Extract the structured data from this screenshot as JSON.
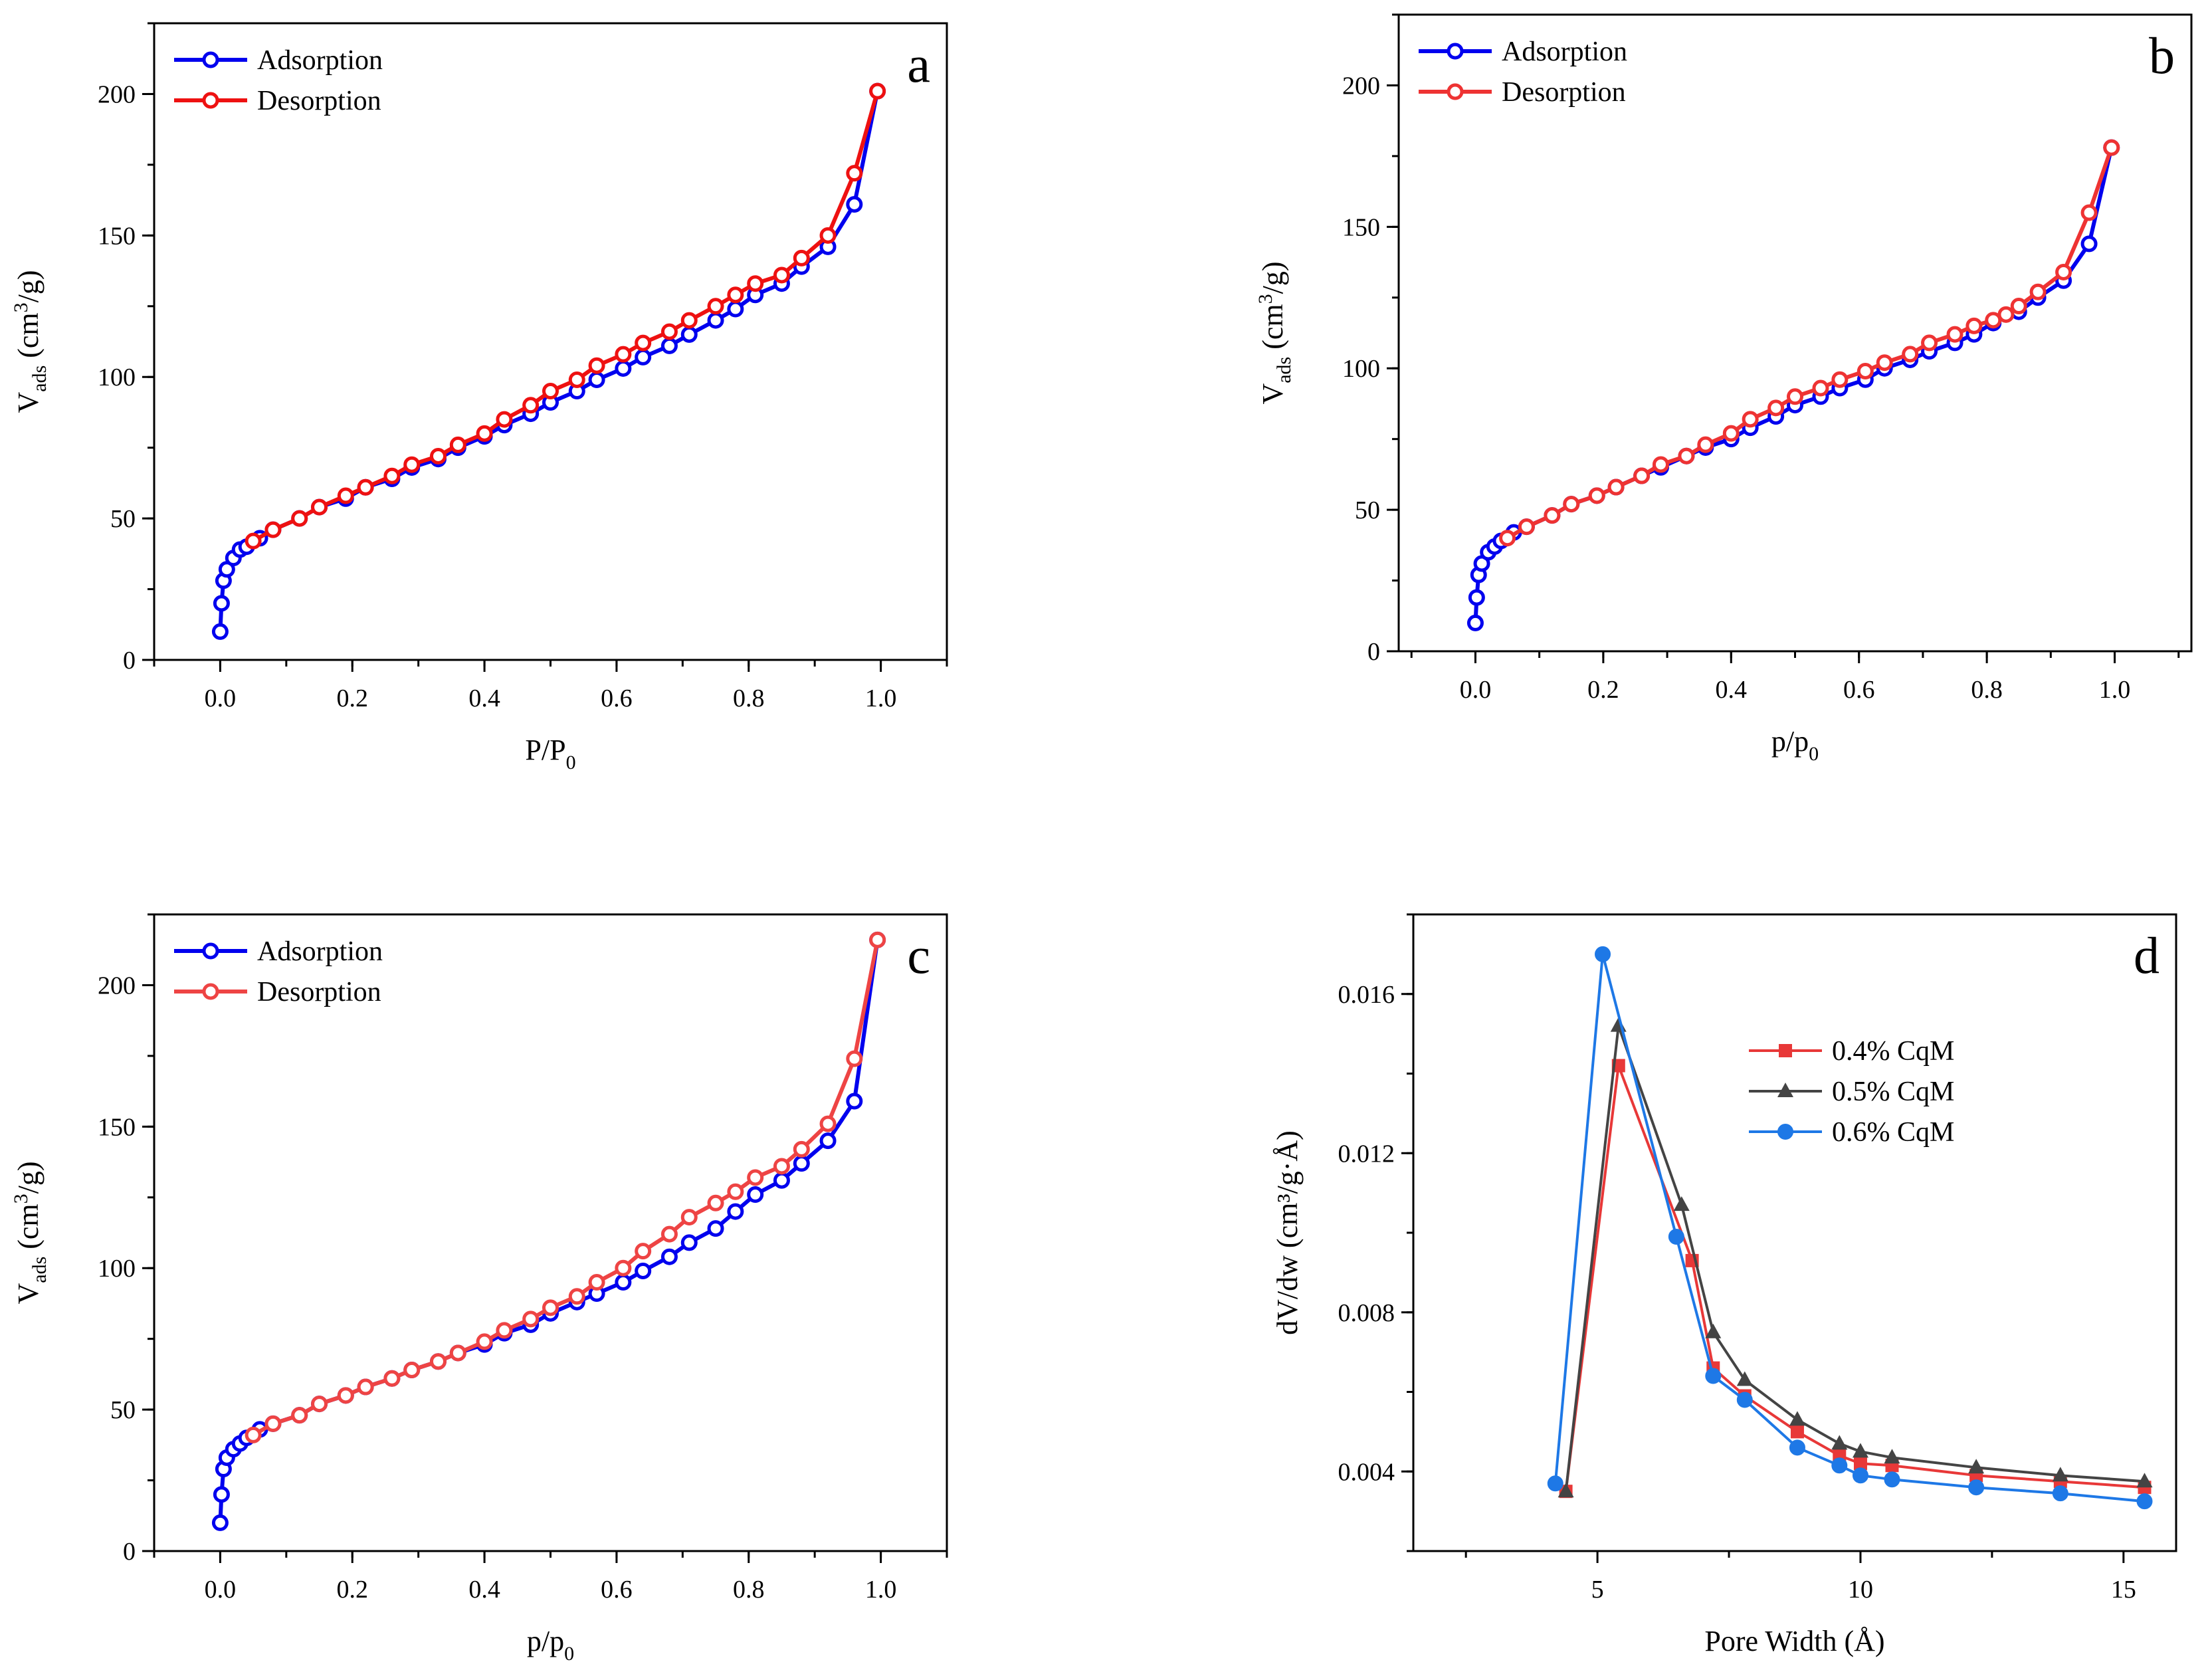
{
  "chart_data": [
    {
      "id": "a",
      "type": "line",
      "panel_label": "a",
      "title": "",
      "xlabel": "P/P",
      "xlabel_sub": "0",
      "ylabel_main": "V",
      "ylabel_sub": "ads",
      "ylabel_rest": " (cm",
      "ylabel_sup": "3",
      "ylabel_end": "/g)",
      "xlim": [
        -0.1,
        1.1
      ],
      "ylim": [
        0,
        225
      ],
      "xticks": [
        0.0,
        0.2,
        0.4,
        0.6,
        0.8,
        1.0
      ],
      "xtick_labels": [
        "0.0",
        "0.2",
        "0.4",
        "0.6",
        "0.8",
        "1.0"
      ],
      "yticks": [
        0,
        50,
        100,
        150,
        200
      ],
      "ytick_labels": [
        "0",
        "50",
        "100",
        "150",
        "200"
      ],
      "legend": "top-left",
      "series": [
        {
          "name": "Adsorption",
          "color": "#0000ee",
          "marker": "open-circle",
          "x": [
            0.0,
            0.002,
            0.005,
            0.01,
            0.02,
            0.03,
            0.04,
            0.06,
            0.08,
            0.12,
            0.15,
            0.19,
            0.22,
            0.26,
            0.29,
            0.33,
            0.36,
            0.4,
            0.43,
            0.47,
            0.5,
            0.54,
            0.57,
            0.61,
            0.64,
            0.68,
            0.71,
            0.75,
            0.78,
            0.81,
            0.85,
            0.88,
            0.92,
            0.96,
            0.995
          ],
          "y": [
            10,
            20,
            28,
            32,
            36,
            39,
            40,
            43,
            46,
            50,
            54,
            57,
            61,
            64,
            68,
            71,
            75,
            79,
            83,
            87,
            91,
            95,
            99,
            103,
            107,
            111,
            115,
            120,
            124,
            129,
            133,
            139,
            146,
            161,
            201
          ]
        },
        {
          "name": "Desorption",
          "color": "#ee1111",
          "marker": "open-circle",
          "x": [
            0.05,
            0.08,
            0.12,
            0.15,
            0.19,
            0.22,
            0.26,
            0.29,
            0.33,
            0.36,
            0.4,
            0.43,
            0.47,
            0.5,
            0.54,
            0.57,
            0.61,
            0.64,
            0.68,
            0.71,
            0.75,
            0.78,
            0.81,
            0.85,
            0.88,
            0.92,
            0.96,
            0.995
          ],
          "y": [
            42,
            46,
            50,
            54,
            58,
            61,
            65,
            69,
            72,
            76,
            80,
            85,
            90,
            95,
            99,
            104,
            108,
            112,
            116,
            120,
            125,
            129,
            133,
            136,
            142,
            150,
            172,
            201
          ]
        }
      ]
    },
    {
      "id": "b",
      "type": "line",
      "panel_label": "b",
      "title": "",
      "xlabel": "p/p",
      "xlabel_sub": "0",
      "ylabel_main": "V",
      "ylabel_sub": "ads",
      "ylabel_rest": " (cm",
      "ylabel_sup": "3",
      "ylabel_end": "/g)",
      "xlim": [
        -0.12,
        1.12
      ],
      "ylim": [
        0,
        225
      ],
      "xticks": [
        0.0,
        0.2,
        0.4,
        0.6,
        0.8,
        1.0
      ],
      "xtick_labels": [
        "0.0",
        "0.2",
        "0.4",
        "0.6",
        "0.8",
        "1.0"
      ],
      "yticks": [
        0,
        50,
        100,
        150,
        200
      ],
      "ytick_labels": [
        "0",
        "50",
        "100",
        "150",
        "200"
      ],
      "legend": "top-left",
      "series": [
        {
          "name": "Adsorption",
          "color": "#0000ee",
          "marker": "open-circle",
          "x": [
            0.0,
            0.002,
            0.005,
            0.01,
            0.02,
            0.03,
            0.04,
            0.06,
            0.08,
            0.12,
            0.15,
            0.19,
            0.22,
            0.26,
            0.29,
            0.33,
            0.36,
            0.4,
            0.43,
            0.47,
            0.5,
            0.54,
            0.57,
            0.61,
            0.64,
            0.68,
            0.71,
            0.75,
            0.78,
            0.81,
            0.85,
            0.88,
            0.92,
            0.96,
            0.995
          ],
          "y": [
            10,
            19,
            27,
            31,
            35,
            37,
            39,
            42,
            44,
            48,
            52,
            55,
            58,
            62,
            65,
            69,
            72,
            75,
            79,
            83,
            87,
            90,
            93,
            96,
            100,
            103,
            106,
            109,
            112,
            116,
            120,
            125,
            131,
            144,
            178
          ]
        },
        {
          "name": "Desorption",
          "color": "#ee3333",
          "marker": "open-circle",
          "x": [
            0.05,
            0.08,
            0.12,
            0.15,
            0.19,
            0.22,
            0.26,
            0.29,
            0.33,
            0.36,
            0.4,
            0.43,
            0.47,
            0.5,
            0.54,
            0.57,
            0.61,
            0.64,
            0.68,
            0.71,
            0.75,
            0.78,
            0.81,
            0.83,
            0.85,
            0.88,
            0.92,
            0.96,
            0.995
          ],
          "y": [
            40,
            44,
            48,
            52,
            55,
            58,
            62,
            66,
            69,
            73,
            77,
            82,
            86,
            90,
            93,
            96,
            99,
            102,
            105,
            109,
            112,
            115,
            117,
            119,
            122,
            127,
            134,
            155,
            178
          ]
        }
      ]
    },
    {
      "id": "c",
      "type": "line",
      "panel_label": "c",
      "title": "",
      "xlabel": "p/p",
      "xlabel_sub": "0",
      "ylabel_main": "V",
      "ylabel_sub": "ads",
      "ylabel_rest": " (cm",
      "ylabel_sup": "3",
      "ylabel_end": "/g)",
      "xlim": [
        -0.1,
        1.1
      ],
      "ylim": [
        0,
        225
      ],
      "xticks": [
        0.0,
        0.2,
        0.4,
        0.6,
        0.8,
        1.0
      ],
      "xtick_labels": [
        "0.0",
        "0.2",
        "0.4",
        "0.6",
        "0.8",
        "1.0"
      ],
      "yticks": [
        0,
        50,
        100,
        150,
        200
      ],
      "ytick_labels": [
        "0",
        "50",
        "100",
        "150",
        "200"
      ],
      "legend": "top-left",
      "series": [
        {
          "name": "Adsorption",
          "color": "#0000ee",
          "marker": "open-circle",
          "x": [
            0.0,
            0.002,
            0.005,
            0.01,
            0.02,
            0.03,
            0.04,
            0.06,
            0.08,
            0.12,
            0.15,
            0.19,
            0.22,
            0.26,
            0.29,
            0.33,
            0.36,
            0.4,
            0.43,
            0.47,
            0.5,
            0.54,
            0.57,
            0.61,
            0.64,
            0.68,
            0.71,
            0.75,
            0.78,
            0.81,
            0.85,
            0.88,
            0.92,
            0.96,
            0.995
          ],
          "y": [
            10,
            20,
            29,
            33,
            36,
            38,
            40,
            43,
            45,
            48,
            52,
            55,
            58,
            61,
            64,
            67,
            70,
            73,
            77,
            80,
            84,
            88,
            91,
            95,
            99,
            104,
            109,
            114,
            120,
            126,
            131,
            137,
            145,
            159,
            216
          ]
        },
        {
          "name": "Desorption",
          "color": "#ee4444",
          "marker": "open-circle",
          "x": [
            0.05,
            0.08,
            0.12,
            0.15,
            0.19,
            0.22,
            0.26,
            0.29,
            0.33,
            0.36,
            0.4,
            0.43,
            0.47,
            0.5,
            0.54,
            0.57,
            0.61,
            0.64,
            0.68,
            0.71,
            0.75,
            0.78,
            0.81,
            0.85,
            0.88,
            0.92,
            0.96,
            0.995
          ],
          "y": [
            41,
            45,
            48,
            52,
            55,
            58,
            61,
            64,
            67,
            70,
            74,
            78,
            82,
            86,
            90,
            95,
            100,
            106,
            112,
            118,
            123,
            127,
            132,
            136,
            142,
            151,
            174,
            216
          ]
        }
      ]
    },
    {
      "id": "d",
      "type": "line",
      "panel_label": "d",
      "title": "",
      "xlabel": "Pore Width (Å)",
      "ylabel": "dV/dw (cm³/g·Å)",
      "xlim": [
        1.5,
        16.0
      ],
      "ylim": [
        0.002,
        0.018
      ],
      "xticks": [
        5,
        10,
        15
      ],
      "xtick_labels": [
        "5",
        "10",
        "15"
      ],
      "minor_xticks": [
        2.5,
        7.5,
        12.5
      ],
      "yticks": [
        0.004,
        0.008,
        0.012,
        0.016
      ],
      "ytick_labels": [
        "0.004",
        "0.008",
        "0.012",
        "0.016"
      ],
      "legend": "upper-middle",
      "series": [
        {
          "name": "0.4% CqM",
          "color": "#e83838",
          "marker": "filled-square",
          "x": [
            4.4,
            5.4,
            6.8,
            7.2,
            7.8,
            8.8,
            9.6,
            10.0,
            10.6,
            12.2,
            13.8,
            15.4
          ],
          "y": [
            0.0035,
            0.0142,
            0.0093,
            0.0066,
            0.0059,
            0.005,
            0.0044,
            0.0042,
            0.00415,
            0.0039,
            0.00375,
            0.0036
          ]
        },
        {
          "name": "0.5% CqM",
          "color": "#444444",
          "marker": "filled-triangle",
          "x": [
            4.4,
            5.4,
            6.6,
            7.2,
            7.8,
            8.8,
            9.6,
            10.0,
            10.6,
            12.2,
            13.8,
            15.4
          ],
          "y": [
            0.0035,
            0.0152,
            0.0107,
            0.0075,
            0.0063,
            0.0053,
            0.0047,
            0.0045,
            0.00435,
            0.0041,
            0.0039,
            0.00375
          ]
        },
        {
          "name": "0.6% CqM",
          "color": "#1e78e6",
          "marker": "filled-circle",
          "x": [
            4.2,
            5.1,
            6.5,
            7.2,
            7.8,
            8.8,
            9.6,
            10.0,
            10.6,
            12.2,
            13.8,
            15.4
          ],
          "y": [
            0.0037,
            0.017,
            0.0099,
            0.0064,
            0.0058,
            0.0046,
            0.00415,
            0.0039,
            0.0038,
            0.0036,
            0.00345,
            0.00325
          ]
        }
      ]
    }
  ]
}
